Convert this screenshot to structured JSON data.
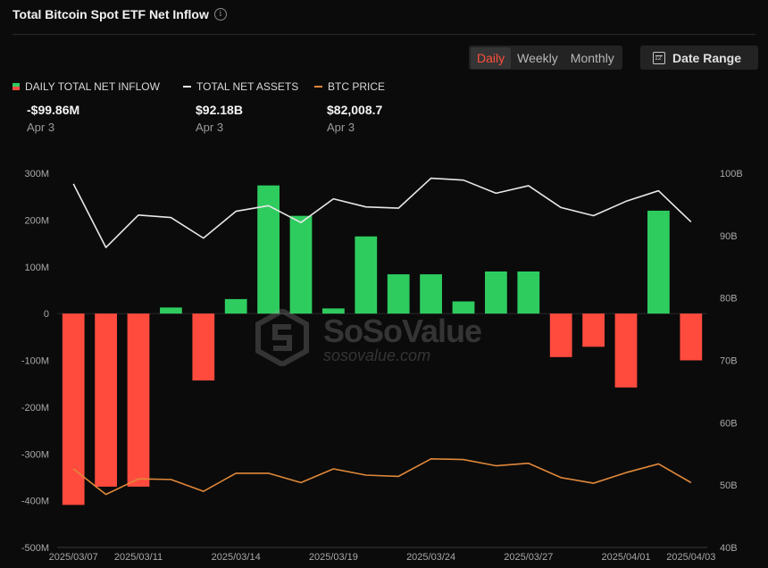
{
  "header": {
    "title": "Total Bitcoin Spot ETF Net Inflow",
    "info_icon": "i"
  },
  "controls": {
    "periods": [
      "Daily",
      "Weekly",
      "Monthly"
    ],
    "active_period": "Daily",
    "date_range_label": "Date Range",
    "date_range_icon": "calendar-icon"
  },
  "legend": [
    {
      "label": "DAILY TOTAL NET INFLOW",
      "value": "-$99.86M",
      "date": "Apr 3"
    },
    {
      "label": "TOTAL NET ASSETS",
      "value": "$92.18B",
      "date": "Apr 3"
    },
    {
      "label": "BTC PRICE",
      "value": "$82,008.7",
      "date": "Apr 3"
    }
  ],
  "colors": {
    "positive": "#2ecc5f",
    "negative": "#ff4b3e",
    "assets_line": "#e8e8e8",
    "price_line": "#e0883a",
    "accent": "#ff4f3a"
  },
  "watermark": {
    "name": "SoSoValue",
    "url": "sosovalue.com"
  },
  "chart_data": {
    "type": "bar",
    "xlabels": [
      "2025/03/07",
      "2025/03/11",
      "2025/03/14",
      "2025/03/19",
      "2025/03/24",
      "2025/03/27",
      "2025/04/01",
      "2025/04/03"
    ],
    "xlabel_positions": [
      0,
      2,
      5,
      8,
      11,
      14,
      17,
      19
    ],
    "yleft_ticks": [
      "300M",
      "200M",
      "100M",
      "0",
      "-100M",
      "-200M",
      "-300M",
      "-400M",
      "-500M"
    ],
    "yleft_range": [
      -500,
      300
    ],
    "yright_ticks": [
      "100B",
      "90B",
      "80B",
      "70B",
      "60B",
      "50B",
      "40B"
    ],
    "yright_range": [
      40,
      100
    ],
    "series": [
      {
        "name": "DAILY TOTAL NET INFLOW",
        "unit": "M",
        "values": [
          -409,
          -370,
          -370,
          13,
          -143,
          31,
          274,
          209,
          11,
          165,
          84,
          84,
          26,
          90,
          90,
          -93,
          -71,
          -158,
          220,
          -100
        ]
      },
      {
        "name": "TOTAL NET ASSETS",
        "unit": "B",
        "values": [
          98.3,
          88.1,
          93.3,
          92.9,
          89.6,
          93.9,
          94.8,
          92.1,
          95.9,
          94.6,
          94.4,
          99.2,
          98.9,
          96.8,
          98.0,
          94.5,
          93.2,
          95.5,
          97.2,
          92.2
        ]
      },
      {
        "name": "BTC PRICE",
        "unit": "B",
        "values": [
          52.6,
          48.5,
          51.0,
          50.9,
          49.0,
          51.9,
          51.9,
          50.4,
          52.6,
          51.6,
          51.4,
          54.2,
          54.1,
          53.1,
          53.5,
          51.2,
          50.3,
          52.0,
          53.4,
          50.4
        ]
      }
    ]
  }
}
